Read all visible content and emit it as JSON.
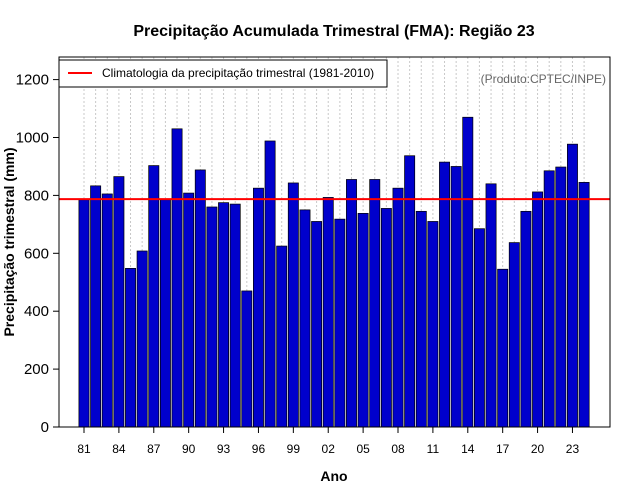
{
  "chart_data": {
    "type": "bar",
    "title": "Precipitação Acumulada Trimestral (FMA): Região 23",
    "xlabel": "Ano",
    "ylabel": "Precipitação trimestral (mm)",
    "ylim": [
      0,
      1280
    ],
    "yticks": [
      0,
      200,
      400,
      600,
      800,
      1000,
      1200
    ],
    "grid": "vertical dotted",
    "categories": [
      "1981",
      "1982",
      "1983",
      "1984",
      "1985",
      "1986",
      "1987",
      "1988",
      "1989",
      "1990",
      "1991",
      "1992",
      "1993",
      "1994",
      "1995",
      "1996",
      "1997",
      "1998",
      "1999",
      "2000",
      "2001",
      "2002",
      "2003",
      "2004",
      "2005",
      "2006",
      "2007",
      "2008",
      "2009",
      "2010",
      "2011",
      "2012",
      "2013",
      "2014",
      "2015",
      "2016",
      "2017",
      "2018",
      "2019",
      "2020",
      "2021",
      "2022",
      "2023",
      "2024"
    ],
    "xtick_labels": [
      {
        "index": 0,
        "label": "81"
      },
      {
        "index": 3,
        "label": "84"
      },
      {
        "index": 6,
        "label": "87"
      },
      {
        "index": 9,
        "label": "90"
      },
      {
        "index": 12,
        "label": "93"
      },
      {
        "index": 15,
        "label": "96"
      },
      {
        "index": 18,
        "label": "99"
      },
      {
        "index": 21,
        "label": "02"
      },
      {
        "index": 24,
        "label": "05"
      },
      {
        "index": 27,
        "label": "08"
      },
      {
        "index": 30,
        "label": "11"
      },
      {
        "index": 33,
        "label": "14"
      },
      {
        "index": 36,
        "label": "17"
      },
      {
        "index": 39,
        "label": "20"
      },
      {
        "index": 42,
        "label": "23"
      }
    ],
    "series": [
      {
        "name": "Precipitação trimestral",
        "color": "#0000cc",
        "values": [
          785,
          833,
          805,
          865,
          548,
          608,
          903,
          785,
          1030,
          808,
          888,
          760,
          775,
          770,
          470,
          825,
          988,
          625,
          843,
          750,
          710,
          793,
          718,
          855,
          738,
          855,
          755,
          825,
          937,
          745,
          710,
          915,
          900,
          1070,
          685,
          840,
          545,
          637,
          745,
          812,
          885,
          898,
          977,
          845
        ]
      }
    ],
    "reference_line": {
      "label": "Climatologia da precipitação trimestral (1981-2010)",
      "value": 787,
      "color": "#ff0000"
    },
    "legend_position": "top-left",
    "annotation": "(Produto:CPTEC/INPE)"
  }
}
